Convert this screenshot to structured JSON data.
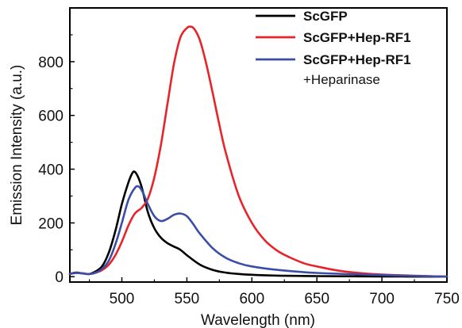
{
  "chart_data": {
    "type": "line",
    "title": "",
    "xlabel": "Wavelength (nm)",
    "ylabel": "Emission Intensity (a.u.)",
    "xlim": [
      460,
      750
    ],
    "ylim": [
      -20,
      1000
    ],
    "xticks": [
      500,
      550,
      600,
      650,
      700,
      750
    ],
    "yticks": [
      0,
      200,
      400,
      600,
      800
    ],
    "xtick_labels": [
      "500",
      "550",
      "600",
      "650",
      "700",
      "750"
    ],
    "ytick_labels": [
      "0",
      "200",
      "400",
      "600",
      "800"
    ],
    "grid": false,
    "legend_position": "top-right",
    "series": [
      {
        "name": "ScGFP",
        "color": "#000000",
        "x": [
          460,
          465,
          470,
          475,
          480,
          485,
          490,
          495,
          500,
          505,
          508,
          510,
          513,
          516,
          520,
          525,
          530,
          535,
          540,
          545,
          550,
          560,
          570,
          580,
          590,
          600,
          620,
          650,
          700,
          750
        ],
        "y": [
          10,
          15,
          12,
          10,
          20,
          40,
          90,
          170,
          270,
          350,
          385,
          390,
          365,
          320,
          240,
          180,
          145,
          125,
          112,
          100,
          80,
          45,
          25,
          15,
          10,
          7,
          4,
          2,
          1,
          0
        ]
      },
      {
        "name": "ScGFP+Hep-RF1",
        "color": "#e8242b",
        "x": [
          460,
          465,
          470,
          475,
          480,
          485,
          490,
          495,
          500,
          505,
          510,
          515,
          520,
          525,
          530,
          535,
          540,
          545,
          550,
          553,
          556,
          560,
          565,
          570,
          575,
          580,
          590,
          600,
          610,
          620,
          630,
          640,
          650,
          670,
          700,
          750
        ],
        "y": [
          10,
          14,
          12,
          10,
          15,
          25,
          45,
          80,
          130,
          190,
          235,
          255,
          290,
          370,
          490,
          640,
          790,
          890,
          925,
          930,
          920,
          880,
          790,
          680,
          565,
          460,
          300,
          200,
          135,
          95,
          70,
          50,
          38,
          20,
          8,
          0
        ]
      },
      {
        "name": "ScGFP+Hep-RF1 +Heparinase",
        "color": "#3a4ea8",
        "x": [
          460,
          465,
          470,
          475,
          480,
          485,
          490,
          495,
          500,
          505,
          510,
          513,
          516,
          520,
          525,
          530,
          535,
          540,
          545,
          550,
          555,
          560,
          570,
          580,
          590,
          600,
          620,
          650,
          700,
          750
        ],
        "y": [
          10,
          14,
          12,
          10,
          15,
          30,
          60,
          120,
          200,
          285,
          330,
          335,
          315,
          270,
          225,
          207,
          215,
          230,
          235,
          225,
          195,
          160,
          105,
          70,
          50,
          38,
          25,
          14,
          6,
          0
        ]
      }
    ],
    "legend": {
      "entries": [
        {
          "lines": [
            "ScGFP"
          ],
          "color": "#000000",
          "bold": [
            true
          ]
        },
        {
          "lines": [
            "ScGFP+Hep-RF1"
          ],
          "color": "#e8242b",
          "bold": [
            true
          ]
        },
        {
          "lines": [
            "ScGFP+Hep-RF1",
            "+Heparinase"
          ],
          "color": "#3a4ea8",
          "bold": [
            true,
            false
          ]
        }
      ]
    }
  }
}
